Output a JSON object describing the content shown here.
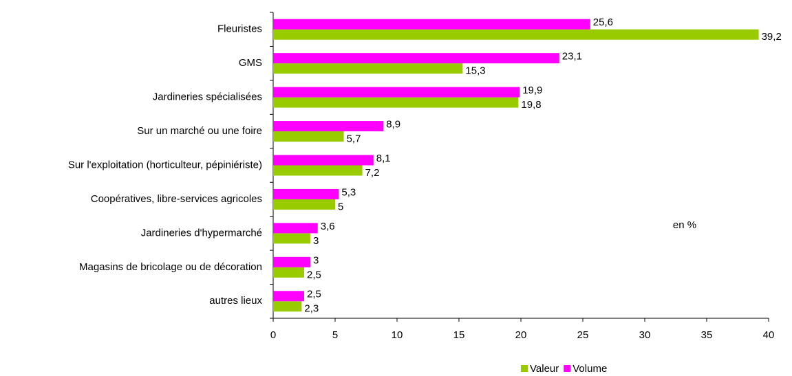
{
  "chart_data": {
    "type": "bar",
    "orientation": "horizontal",
    "categories": [
      "Fleuristes",
      "GMS",
      "Jardineries spécialisées",
      "Sur un marché ou une foire",
      "Sur l'exploitation (horticulteur, pépiniériste)",
      "Coopératives, libre-services agricoles",
      "Jardineries d'hypermarché",
      "Magasins de bricolage ou de décoration",
      "autres lieux"
    ],
    "series": [
      {
        "name": "Valeur",
        "color": "#99cc00",
        "values": [
          39.2,
          15.3,
          19.8,
          5.7,
          7.2,
          5,
          3,
          2.5,
          2.3
        ],
        "value_labels": [
          "39,2",
          "15,3",
          "19,8",
          "5,7",
          "7,2",
          "5",
          "3",
          "2,5",
          "2,3"
        ]
      },
      {
        "name": "Volume",
        "color": "#ff00ff",
        "values": [
          25.6,
          23.1,
          19.9,
          8.9,
          8.1,
          5.3,
          3.6,
          3,
          2.5
        ],
        "value_labels": [
          "25,6",
          "23,1",
          "19,9",
          "8,9",
          "8,1",
          "5,3",
          "3,6",
          "3",
          "2,5"
        ]
      }
    ],
    "xlim": [
      0,
      40
    ],
    "xticks": [
      0,
      5,
      10,
      15,
      20,
      25,
      30,
      35,
      40
    ],
    "annotation": "en %",
    "legend": "bottom"
  }
}
